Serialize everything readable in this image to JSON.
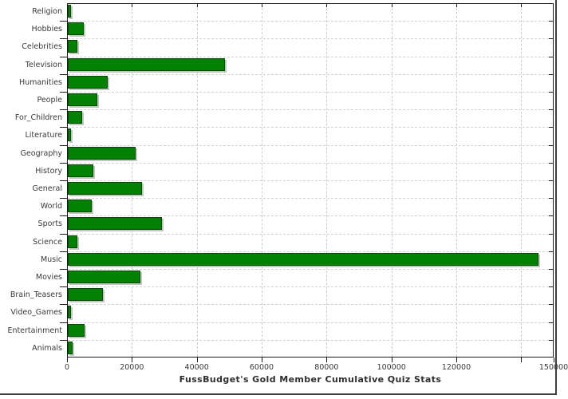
{
  "chart_data": {
    "type": "bar",
    "orientation": "horizontal",
    "title": "FussBudget's Gold Member Cumulative Quiz Stats",
    "categories": [
      "Religion",
      "Hobbies",
      "Celebrities",
      "Television",
      "Humanities",
      "People",
      "For_Children",
      "Literature",
      "Geography",
      "History",
      "General",
      "World",
      "Sports",
      "Science",
      "Music",
      "Movies",
      "Brain_Teasers",
      "Video_Games",
      "Entertainment",
      "Animals"
    ],
    "values": [
      1100,
      4900,
      3000,
      48600,
      12400,
      9000,
      4400,
      1100,
      21000,
      7800,
      22800,
      7400,
      29000,
      2900,
      145300,
      22300,
      10800,
      1100,
      5200,
      1400
    ],
    "xlim": [
      0,
      150000
    ],
    "x_ticks": [
      {
        "value": 0,
        "label": "0",
        "grid": false
      },
      {
        "value": 20000,
        "label": "20000",
        "grid": true
      },
      {
        "value": 40000,
        "label": "40000",
        "grid": true
      },
      {
        "value": 60000,
        "label": "60000",
        "grid": true
      },
      {
        "value": 80000,
        "label": "80000",
        "grid": true
      },
      {
        "value": 100000,
        "label": "100000",
        "grid": true
      },
      {
        "value": 120000,
        "label": "120000",
        "grid": true
      },
      {
        "value": 140000,
        "label": "",
        "grid": true
      },
      {
        "value": 150000,
        "label": "150000",
        "grid": false
      }
    ],
    "grid": true,
    "legend": "none",
    "colors": {
      "bar_fill": "#028102",
      "bar_border": "#024d02",
      "bar_shadow": "#c5c5c5",
      "grid_vertical": "#c6cfd8",
      "grid_horizontal": "#d2d2d2",
      "axis": "#1a1a1a",
      "labels": "#3a3a3a",
      "title": "#2e2e2e",
      "frame": "#3f3f3f",
      "background": "#ffffff"
    }
  }
}
